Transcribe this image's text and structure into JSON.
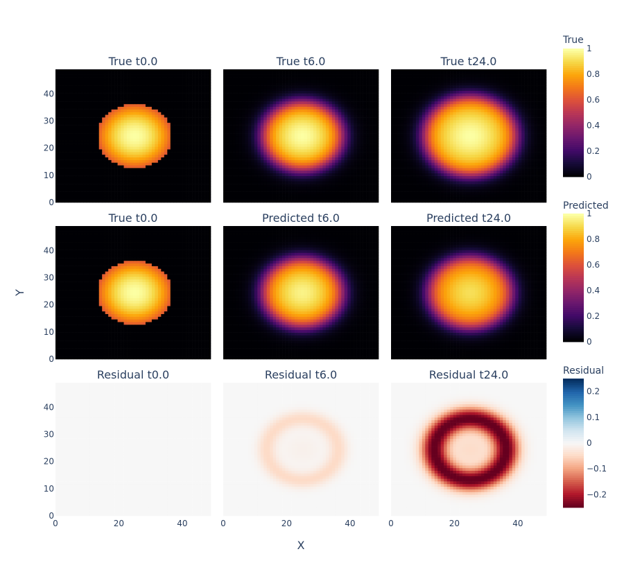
{
  "chart_data": {
    "type": "heatmap",
    "grid": false,
    "x_axis_title": "X",
    "y_axis_title": "Y",
    "x_range": [
      0,
      49
    ],
    "y_range": [
      0,
      49
    ],
    "x_ticks": [
      "0",
      "20",
      "40"
    ],
    "y_ticks": [
      "0",
      "10",
      "20",
      "30",
      "40"
    ],
    "panels": [
      {
        "title": "True t0.0",
        "row": 0,
        "col": 0,
        "field": "true",
        "center": [
          25,
          24.5
        ],
        "radius": 12,
        "edge": "sharp",
        "peak": 1.0
      },
      {
        "title": "True t6.0",
        "row": 0,
        "col": 1,
        "field": "true",
        "center": [
          25,
          24.5
        ],
        "radius": 13,
        "edge": "soft",
        "peak": 1.0
      },
      {
        "title": "True t24.0",
        "row": 0,
        "col": 2,
        "field": "true",
        "center": [
          25,
          24.5
        ],
        "radius": 15,
        "edge": "soft",
        "peak": 1.0
      },
      {
        "title": "True t0.0",
        "row": 1,
        "col": 0,
        "field": "true",
        "center": [
          25,
          24.5
        ],
        "radius": 12,
        "edge": "sharp",
        "peak": 1.0
      },
      {
        "title": "Predicted t6.0",
        "row": 1,
        "col": 1,
        "field": "predicted",
        "center": [
          25,
          24.5
        ],
        "radius": 13,
        "edge": "soft",
        "peak": 0.97
      },
      {
        "title": "Predicted t24.0",
        "row": 1,
        "col": 2,
        "field": "predicted",
        "center": [
          25,
          24.5
        ],
        "radius": 13.5,
        "edge": "soft",
        "peak": 0.92
      },
      {
        "title": "Residual t0.0",
        "row": 2,
        "col": 0,
        "field": "residual",
        "center": [
          25,
          24.5
        ],
        "ring_radius": 0,
        "min": 0.0
      },
      {
        "title": "Residual t6.0",
        "row": 2,
        "col": 1,
        "field": "residual",
        "center": [
          25,
          24.5
        ],
        "ring_radius": 11.5,
        "min": -0.05
      },
      {
        "title": "Residual t24.0",
        "row": 2,
        "col": 2,
        "field": "residual",
        "center": [
          25,
          24.5
        ],
        "ring_radius": 11.5,
        "min": -0.26
      }
    ],
    "colorbars": [
      {
        "title": "True",
        "colorscale": "inferno",
        "range": [
          0,
          1
        ],
        "ticks": [
          "0",
          "0.2",
          "0.4",
          "0.6",
          "0.8",
          "1"
        ],
        "tick_values": [
          0,
          0.2,
          0.4,
          0.6,
          0.8,
          1
        ]
      },
      {
        "title": "Predicted",
        "colorscale": "inferno",
        "range": [
          0,
          1
        ],
        "ticks": [
          "0",
          "0.2",
          "0.4",
          "0.6",
          "0.8",
          "1"
        ],
        "tick_values": [
          0,
          0.2,
          0.4,
          0.6,
          0.8,
          1
        ]
      },
      {
        "title": "Residual",
        "colorscale": "RdBu",
        "range": [
          -0.25,
          0.25
        ],
        "ticks": [
          "−0.2",
          "−0.1",
          "0",
          "0.1",
          "0.2"
        ],
        "tick_values": [
          -0.2,
          -0.1,
          0,
          0.1,
          0.2
        ]
      }
    ]
  }
}
